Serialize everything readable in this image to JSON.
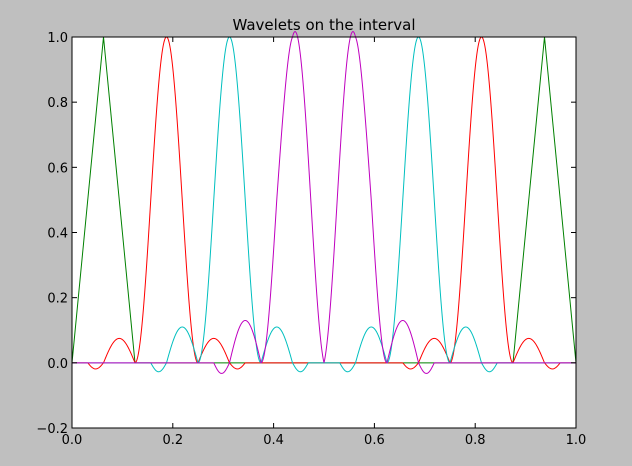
{
  "chart_data": {
    "type": "line",
    "title": "Wavelets on the interval",
    "xlabel": "",
    "ylabel": "",
    "xlim": [
      0.0,
      1.0
    ],
    "ylim": [
      -0.2,
      1.0
    ],
    "x_ticks": [
      "0.0",
      "0.2",
      "0.4",
      "0.6",
      "0.8",
      "1.0"
    ],
    "y_ticks": [
      "−0.2",
      "0.0",
      "0.2",
      "0.4",
      "0.6",
      "0.8",
      "1.0"
    ],
    "grid": false,
    "legend": false,
    "background": "#bfbfbf",
    "plot_background": "#ffffff",
    "series": [
      {
        "color": "#008000",
        "kind": "hat",
        "centers": [
          0.0625,
          0.9375
        ],
        "half_width": 0.0625
      },
      {
        "color": "#ff0000",
        "kind": "wavelet",
        "centers": [
          0.1875,
          0.8125
        ],
        "half_width": 0.0625,
        "min": -0.075
      },
      {
        "color": "#00bfbf",
        "kind": "wavelet",
        "centers": [
          0.3125,
          0.6875
        ],
        "half_width": 0.0625,
        "min": -0.11
      },
      {
        "color": "#bf00bf",
        "kind": "wavelet",
        "centers": [
          0.4375,
          0.5625
        ],
        "half_width": 0.0625,
        "min": -0.13
      }
    ]
  }
}
